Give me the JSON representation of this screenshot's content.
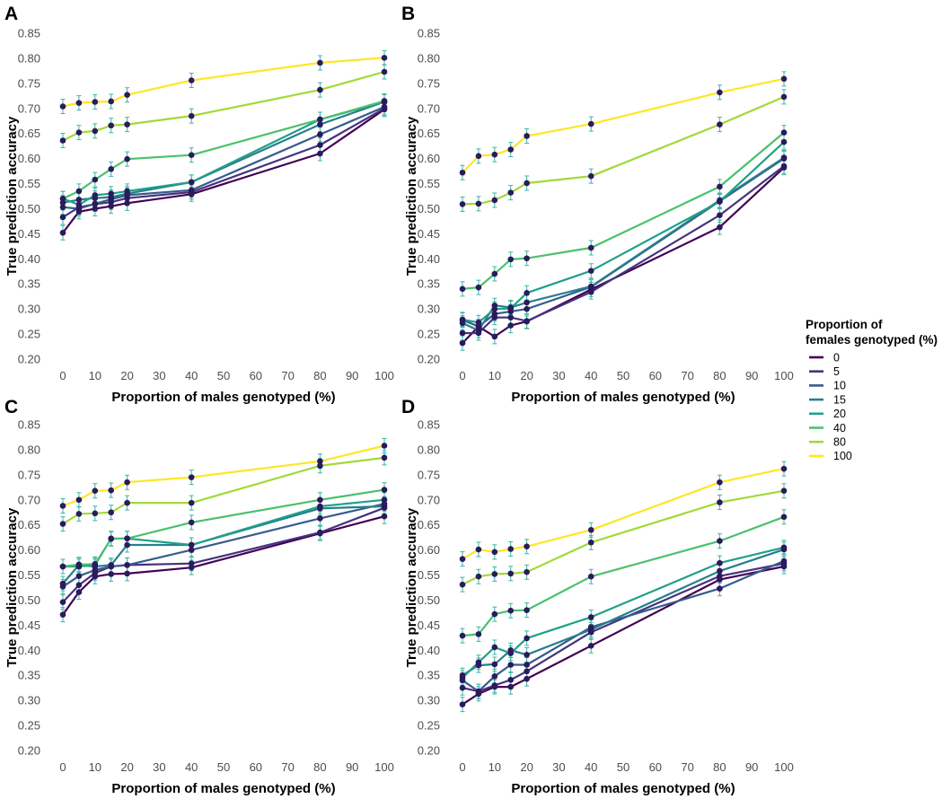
{
  "chart_data": {
    "type": "line",
    "x": [
      0,
      5,
      10,
      15,
      20,
      40,
      80,
      100
    ],
    "xticks": [
      0,
      10,
      20,
      30,
      40,
      50,
      60,
      70,
      80,
      90,
      100
    ],
    "xtick_labels": [
      "0",
      "10",
      "20",
      "30",
      "40",
      "50",
      "60",
      "70",
      "80",
      "90",
      "100"
    ],
    "yticks": [
      0.2,
      0.25,
      0.3,
      0.35,
      0.4,
      0.45,
      0.5,
      0.55,
      0.6,
      0.65,
      0.7,
      0.75,
      0.8,
      0.85
    ],
    "ytick_labels": [
      "0.20",
      "0.25",
      "0.30",
      "0.35",
      "0.40",
      "0.45",
      "0.50",
      "0.55",
      "0.60",
      "0.65",
      "0.70",
      "0.75",
      "0.80",
      "0.85"
    ],
    "xlim": [
      0,
      100
    ],
    "ylim": [
      0.2,
      0.85
    ],
    "xlabel": "Proportion of males genotyped (%)",
    "ylabel": "True prediction accuracy",
    "grid": false,
    "legend": {
      "title_lines": [
        "Proportion of",
        "females genotyped (%)"
      ],
      "placement": "right",
      "entries": [
        {
          "label": "0",
          "color": "#440154"
        },
        {
          "label": "5",
          "color": "#46337e"
        },
        {
          "label": "10",
          "color": "#365c8d"
        },
        {
          "label": "15",
          "color": "#277f8e"
        },
        {
          "label": "20",
          "color": "#1fa187"
        },
        {
          "label": "40",
          "color": "#4ac16d"
        },
        {
          "label": "80",
          "color": "#a0da39"
        },
        {
          "label": "100",
          "color": "#fde725"
        }
      ]
    },
    "marker_color": "#2b1a5e",
    "error_bar_color": "#3cb5a5",
    "panels": [
      {
        "label": "A",
        "series": [
          {
            "name": "0",
            "values": [
              0.452,
              0.494,
              0.5,
              0.505,
              0.511,
              0.529,
              0.61,
              0.698
            ]
          },
          {
            "name": "5",
            "values": [
              0.483,
              0.503,
              0.509,
              0.513,
              0.521,
              0.533,
              0.627,
              0.7
            ]
          },
          {
            "name": "10",
            "values": [
              0.503,
              0.5,
              0.51,
              0.519,
              0.527,
              0.537,
              0.648,
              0.703
            ]
          },
          {
            "name": "15",
            "values": [
              0.512,
              0.518,
              0.521,
              0.523,
              0.53,
              0.553,
              0.668,
              0.713
            ]
          },
          {
            "name": "20",
            "values": [
              0.52,
              0.508,
              0.527,
              0.53,
              0.535,
              0.553,
              0.678,
              0.713
            ]
          },
          {
            "name": "40",
            "values": [
              0.52,
              0.535,
              0.558,
              0.579,
              0.599,
              0.607,
              0.678,
              0.715
            ]
          },
          {
            "name": "80",
            "values": [
              0.636,
              0.652,
              0.655,
              0.666,
              0.668,
              0.685,
              0.737,
              0.773
            ]
          },
          {
            "name": "100",
            "values": [
              0.704,
              0.711,
              0.713,
              0.714,
              0.727,
              0.756,
              0.791,
              0.801
            ]
          }
        ]
      },
      {
        "label": "B",
        "series": [
          {
            "name": "0",
            "values": [
              0.232,
              0.265,
              0.245,
              0.267,
              0.275,
              0.339,
              0.463,
              0.582
            ]
          },
          {
            "name": "5",
            "values": [
              0.252,
              0.252,
              0.283,
              0.283,
              0.276,
              0.334,
              0.487,
              0.585
            ]
          },
          {
            "name": "10",
            "values": [
              0.278,
              0.265,
              0.29,
              0.295,
              0.3,
              0.344,
              0.515,
              0.6
            ]
          },
          {
            "name": "15",
            "values": [
              0.272,
              0.257,
              0.307,
              0.303,
              0.313,
              0.345,
              0.517,
              0.602
            ]
          },
          {
            "name": "20",
            "values": [
              0.279,
              0.273,
              0.3,
              0.301,
              0.332,
              0.376,
              0.514,
              0.633
            ]
          },
          {
            "name": "40",
            "values": [
              0.34,
              0.343,
              0.37,
              0.399,
              0.401,
              0.422,
              0.544,
              0.652
            ]
          },
          {
            "name": "80",
            "values": [
              0.509,
              0.51,
              0.517,
              0.532,
              0.551,
              0.565,
              0.668,
              0.723
            ]
          },
          {
            "name": "100",
            "values": [
              0.572,
              0.605,
              0.608,
              0.618,
              0.645,
              0.669,
              0.732,
              0.759
            ]
          }
        ]
      },
      {
        "label": "C",
        "series": [
          {
            "name": "0",
            "values": [
              0.471,
              0.516,
              0.547,
              0.552,
              0.553,
              0.565,
              0.633,
              0.667
            ]
          },
          {
            "name": "5",
            "values": [
              0.496,
              0.53,
              0.554,
              0.567,
              0.57,
              0.573,
              0.635,
              0.684
            ]
          },
          {
            "name": "10",
            "values": [
              0.527,
              0.548,
              0.56,
              0.567,
              0.57,
              0.6,
              0.663,
              0.692
            ]
          },
          {
            "name": "15",
            "values": [
              0.533,
              0.57,
              0.567,
              0.57,
              0.61,
              0.61,
              0.683,
              0.687
            ]
          },
          {
            "name": "20",
            "values": [
              0.567,
              0.567,
              0.57,
              0.623,
              0.623,
              0.61,
              0.687,
              0.7
            ]
          },
          {
            "name": "40",
            "values": [
              0.567,
              0.571,
              0.572,
              0.622,
              0.623,
              0.655,
              0.7,
              0.72
            ]
          },
          {
            "name": "80",
            "values": [
              0.652,
              0.672,
              0.673,
              0.675,
              0.694,
              0.694,
              0.768,
              0.784
            ]
          },
          {
            "name": "100",
            "values": [
              0.688,
              0.7,
              0.718,
              0.719,
              0.735,
              0.745,
              0.777,
              0.808
            ]
          }
        ]
      },
      {
        "label": "D",
        "series": [
          {
            "name": "0",
            "values": [
              0.292,
              0.313,
              0.327,
              0.327,
              0.343,
              0.409,
              0.541,
              0.567
            ]
          },
          {
            "name": "5",
            "values": [
              0.325,
              0.318,
              0.33,
              0.341,
              0.358,
              0.436,
              0.548,
              0.573
            ]
          },
          {
            "name": "10",
            "values": [
              0.34,
              0.318,
              0.348,
              0.371,
              0.371,
              0.446,
              0.523,
              0.578
            ]
          },
          {
            "name": "15",
            "values": [
              0.35,
              0.37,
              0.372,
              0.4,
              0.391,
              0.441,
              0.558,
              0.601
            ]
          },
          {
            "name": "20",
            "values": [
              0.345,
              0.376,
              0.406,
              0.394,
              0.424,
              0.466,
              0.574,
              0.605
            ]
          },
          {
            "name": "40",
            "values": [
              0.429,
              0.432,
              0.472,
              0.479,
              0.48,
              0.547,
              0.618,
              0.666
            ]
          },
          {
            "name": "80",
            "values": [
              0.531,
              0.547,
              0.552,
              0.553,
              0.556,
              0.615,
              0.695,
              0.718
            ]
          },
          {
            "name": "100",
            "values": [
              0.582,
              0.601,
              0.596,
              0.602,
              0.607,
              0.64,
              0.735,
              0.762
            ]
          }
        ]
      }
    ]
  }
}
